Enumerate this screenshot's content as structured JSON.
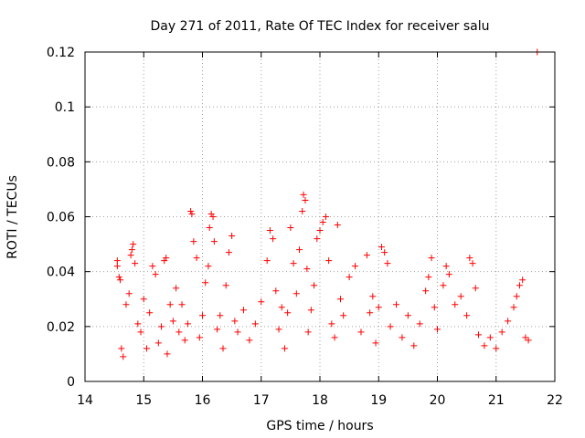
{
  "chart_data": {
    "type": "scatter",
    "title": "Day 271 of 2011, Rate Of TEC Index for receiver salu",
    "xlabel": "GPS time / hours",
    "ylabel": "ROTI / TECUs",
    "xlim": [
      14,
      22
    ],
    "ylim": [
      0,
      0.12
    ],
    "x_ticks": [
      "14",
      "15",
      "16",
      "17",
      "18",
      "19",
      "20",
      "21",
      "22"
    ],
    "y_ticks": [
      "0",
      "0.02",
      "0.04",
      "0.06",
      "0.08",
      "0.1",
      "0.12"
    ],
    "grid": true,
    "marker": "+",
    "color": "#ff0000",
    "series": [
      {
        "points": [
          [
            14.55,
            0.044
          ],
          [
            14.55,
            0.042
          ],
          [
            14.58,
            0.038
          ],
          [
            14.6,
            0.037
          ],
          [
            14.62,
            0.012
          ],
          [
            14.65,
            0.009
          ],
          [
            14.7,
            0.028
          ],
          [
            14.75,
            0.032
          ],
          [
            14.78,
            0.046
          ],
          [
            14.8,
            0.048
          ],
          [
            14.82,
            0.05
          ],
          [
            14.85,
            0.043
          ],
          [
            14.9,
            0.021
          ],
          [
            14.95,
            0.018
          ],
          [
            15.0,
            0.03
          ],
          [
            15.05,
            0.012
          ],
          [
            15.1,
            0.025
          ],
          [
            15.15,
            0.042
          ],
          [
            15.2,
            0.039
          ],
          [
            15.25,
            0.014
          ],
          [
            15.3,
            0.02
          ],
          [
            15.35,
            0.044
          ],
          [
            15.38,
            0.045
          ],
          [
            15.4,
            0.01
          ],
          [
            15.45,
            0.028
          ],
          [
            15.5,
            0.022
          ],
          [
            15.55,
            0.034
          ],
          [
            15.6,
            0.018
          ],
          [
            15.65,
            0.028
          ],
          [
            15.7,
            0.015
          ],
          [
            15.75,
            0.021
          ],
          [
            15.8,
            0.062
          ],
          [
            15.82,
            0.061
          ],
          [
            15.85,
            0.051
          ],
          [
            15.9,
            0.045
          ],
          [
            15.95,
            0.016
          ],
          [
            16.0,
            0.024
          ],
          [
            16.05,
            0.036
          ],
          [
            16.1,
            0.042
          ],
          [
            16.12,
            0.056
          ],
          [
            16.15,
            0.061
          ],
          [
            16.18,
            0.06
          ],
          [
            16.2,
            0.051
          ],
          [
            16.25,
            0.019
          ],
          [
            16.3,
            0.024
          ],
          [
            16.35,
            0.012
          ],
          [
            16.4,
            0.035
          ],
          [
            16.45,
            0.047
          ],
          [
            16.5,
            0.053
          ],
          [
            16.55,
            0.022
          ],
          [
            16.6,
            0.018
          ],
          [
            16.7,
            0.026
          ],
          [
            16.8,
            0.015
          ],
          [
            16.9,
            0.021
          ],
          [
            17.0,
            0.029
          ],
          [
            17.1,
            0.044
          ],
          [
            17.15,
            0.055
          ],
          [
            17.2,
            0.052
          ],
          [
            17.25,
            0.033
          ],
          [
            17.3,
            0.019
          ],
          [
            17.35,
            0.027
          ],
          [
            17.4,
            0.012
          ],
          [
            17.45,
            0.025
          ],
          [
            17.5,
            0.056
          ],
          [
            17.55,
            0.043
          ],
          [
            17.6,
            0.032
          ],
          [
            17.65,
            0.048
          ],
          [
            17.7,
            0.062
          ],
          [
            17.72,
            0.068
          ],
          [
            17.75,
            0.066
          ],
          [
            17.78,
            0.041
          ],
          [
            17.8,
            0.018
          ],
          [
            17.85,
            0.026
          ],
          [
            17.9,
            0.035
          ],
          [
            17.95,
            0.052
          ],
          [
            18.0,
            0.055
          ],
          [
            18.05,
            0.058
          ],
          [
            18.1,
            0.06
          ],
          [
            18.15,
            0.044
          ],
          [
            18.2,
            0.021
          ],
          [
            18.25,
            0.016
          ],
          [
            18.3,
            0.057
          ],
          [
            18.35,
            0.03
          ],
          [
            18.4,
            0.024
          ],
          [
            18.5,
            0.038
          ],
          [
            18.6,
            0.042
          ],
          [
            18.7,
            0.018
          ],
          [
            18.8,
            0.046
          ],
          [
            18.85,
            0.025
          ],
          [
            18.9,
            0.031
          ],
          [
            18.95,
            0.014
          ],
          [
            19.0,
            0.027
          ],
          [
            19.05,
            0.049
          ],
          [
            19.1,
            0.047
          ],
          [
            19.15,
            0.043
          ],
          [
            19.2,
            0.02
          ],
          [
            19.3,
            0.028
          ],
          [
            19.4,
            0.016
          ],
          [
            19.5,
            0.024
          ],
          [
            19.6,
            0.013
          ],
          [
            19.7,
            0.021
          ],
          [
            19.8,
            0.033
          ],
          [
            19.85,
            0.038
          ],
          [
            19.9,
            0.045
          ],
          [
            19.95,
            0.027
          ],
          [
            20.0,
            0.019
          ],
          [
            20.1,
            0.035
          ],
          [
            20.15,
            0.042
          ],
          [
            20.2,
            0.039
          ],
          [
            20.3,
            0.028
          ],
          [
            20.4,
            0.031
          ],
          [
            20.5,
            0.024
          ],
          [
            20.55,
            0.045
          ],
          [
            20.6,
            0.043
          ],
          [
            20.65,
            0.034
          ],
          [
            20.7,
            0.017
          ],
          [
            20.8,
            0.013
          ],
          [
            20.9,
            0.016
          ],
          [
            21.0,
            0.012
          ],
          [
            21.1,
            0.018
          ],
          [
            21.2,
            0.022
          ],
          [
            21.3,
            0.027
          ],
          [
            21.35,
            0.031
          ],
          [
            21.4,
            0.035
          ],
          [
            21.45,
            0.037
          ],
          [
            21.5,
            0.016
          ],
          [
            21.55,
            0.015
          ],
          [
            21.7,
            0.12
          ]
        ]
      }
    ]
  }
}
